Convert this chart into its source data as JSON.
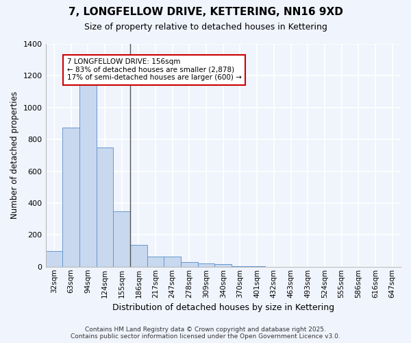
{
  "title": "7, LONGFELLOW DRIVE, KETTERING, NN16 9XD",
  "subtitle": "Size of property relative to detached houses in Kettering",
  "xlabel": "Distribution of detached houses by size in Kettering",
  "ylabel": "Number of detached properties",
  "bar_color": "#c8d8ee",
  "bar_edge_color": "#6699cc",
  "background_color": "#f0f4fc",
  "grid_color": "#ffffff",
  "categories": [
    "32sqm",
    "63sqm",
    "94sqm",
    "124sqm",
    "155sqm",
    "186sqm",
    "217sqm",
    "247sqm",
    "278sqm",
    "309sqm",
    "340sqm",
    "370sqm",
    "401sqm",
    "432sqm",
    "463sqm",
    "493sqm",
    "524sqm",
    "555sqm",
    "586sqm",
    "616sqm",
    "647sqm"
  ],
  "values": [
    100,
    875,
    1160,
    750,
    350,
    135,
    65,
    65,
    30,
    20,
    15,
    5,
    5,
    0,
    0,
    0,
    0,
    0,
    0,
    0,
    0
  ],
  "ylim": [
    0,
    1400
  ],
  "yticks": [
    0,
    200,
    400,
    600,
    800,
    1000,
    1200,
    1400
  ],
  "property_line_x": 4.5,
  "annotation_text": "7 LONGFELLOW DRIVE: 156sqm\n← 83% of detached houses are smaller (2,878)\n17% of semi-detached houses are larger (600) →",
  "annotation_box_color": "#ffffff",
  "annotation_border_color": "#cc0000",
  "footer_line1": "Contains HM Land Registry data © Crown copyright and database right 2025.",
  "footer_line2": "Contains public sector information licensed under the Open Government Licence v3.0."
}
